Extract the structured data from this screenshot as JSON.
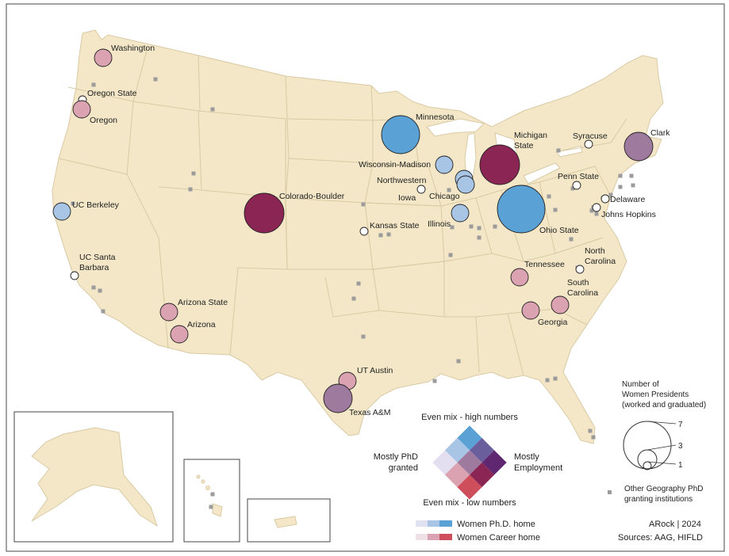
{
  "colors": {
    "land": "#f3e7c7",
    "state_border": "#d9caa4",
    "frame": "#444444",
    "other_marker": "#9b9b9b",
    "phd_low": "#dfe2f1",
    "phd_mid": "#a9c5e6",
    "phd_high": "#5aa1d6",
    "emp_low": "#efdfe6",
    "emp_mid": "#dba3b2",
    "emp_high": "#cf4e5b",
    "mix_low": "#e4dff0",
    "mix_midlow": "#b6a6c9",
    "mix_mid": "#9f7a9f",
    "mix_high": "#5f276f",
    "dark_maroon": "#8a2554",
    "mid_purple": "#7d5a95",
    "mid_purple2": "#b46587",
    "mid_purple3": "#7292c2",
    "mid_purple4": "#bd8ba9"
  },
  "institutions": [
    {
      "name": "Washington",
      "size": 2,
      "class": "emp_mid"
    },
    {
      "name": "Oregon State",
      "size": 1,
      "class": "white"
    },
    {
      "name": "Oregon",
      "size": 2,
      "class": "emp_mid"
    },
    {
      "name": "UC Berkeley",
      "size": 2,
      "class": "phd_mid"
    },
    {
      "name": "UC Santa Barbara",
      "size": 1,
      "class": "white"
    },
    {
      "name": "Arizona State",
      "size": 2,
      "class": "emp_mid"
    },
    {
      "name": "Arizona",
      "size": 2,
      "class": "emp_mid"
    },
    {
      "name": "Colorado-Boulder",
      "size": 5,
      "class": "dark_maroon"
    },
    {
      "name": "Minnesota",
      "size": 6,
      "class": "phd_high"
    },
    {
      "name": "Wisconsin-Madison",
      "size": 2,
      "class": "phd_mid"
    },
    {
      "name": "Northwestern",
      "size": 2,
      "class": "phd_mid"
    },
    {
      "name": "Chicago",
      "size": 2,
      "class": "phd_mid"
    },
    {
      "name": "Iowa",
      "size": 1,
      "class": "white"
    },
    {
      "name": "Illinois",
      "size": 2,
      "class": "phd_mid"
    },
    {
      "name": "Kansas State",
      "size": 1,
      "class": "white"
    },
    {
      "name": "Michigan State",
      "size": 5,
      "class": "dark_maroon"
    },
    {
      "name": "Ohio State",
      "size": 7,
      "class": "phd_high"
    },
    {
      "name": "Syracuse",
      "size": 1,
      "class": "white"
    },
    {
      "name": "Clark",
      "size": 3,
      "class": "mix_mid"
    },
    {
      "name": "Penn State",
      "size": 1,
      "class": "white"
    },
    {
      "name": "Delaware",
      "size": 1,
      "class": "white"
    },
    {
      "name": "Johns Hopkins",
      "size": 1,
      "class": "white"
    },
    {
      "name": "North Carolina",
      "size": 1,
      "class": "white"
    },
    {
      "name": "Tennessee",
      "size": 2,
      "class": "emp_mid"
    },
    {
      "name": "South Carolina",
      "size": 2,
      "class": "emp_mid"
    },
    {
      "name": "Georgia",
      "size": 2,
      "class": "emp_mid"
    },
    {
      "name": "UT Austin",
      "size": 2,
      "class": "emp_mid"
    },
    {
      "name": "Texas A&M",
      "size": 3,
      "class": "mix_mid"
    }
  ],
  "legend": {
    "bivariate_top": "Even mix - high numbers",
    "bivariate_bottom": "Even mix - low numbers",
    "bivariate_left": "Mostly PhD granted",
    "bivariate_right": "Mostly Employment",
    "phd_bar_label": "Women Ph.D. home",
    "career_bar_label": "Women Career home",
    "size_title": "Number of Women Presidents (worked and graduated)",
    "size_values": [
      "7",
      "3",
      "1"
    ],
    "other_label": "Other Geography PhD granting institutions"
  },
  "credits": {
    "author": "ARock | 2024",
    "sources": "Sources: AAG, HIFLD"
  }
}
